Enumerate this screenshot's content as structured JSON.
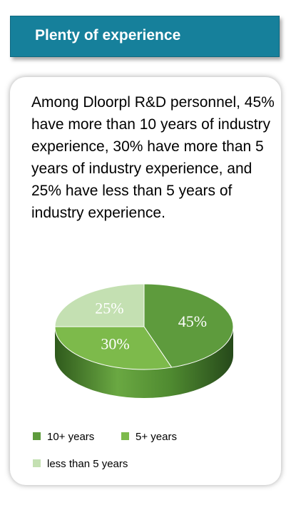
{
  "header": {
    "title": "Plenty of experience"
  },
  "description": "Among Dloorpl R&D personnel, 45% have more than 10 years of industry experience, 30% have more than 5 years of industry experience, and 25% have less than 5 years of industry experience.",
  "chart_data": {
    "type": "pie",
    "categories": [
      "10+ years",
      "5+ years",
      "less than 5 years"
    ],
    "values": [
      45,
      30,
      25
    ],
    "value_labels": [
      "45%",
      "30%",
      "25%"
    ],
    "colors": [
      "#5e9b3d",
      "#7dba4b",
      "#c4e0b2"
    ]
  }
}
